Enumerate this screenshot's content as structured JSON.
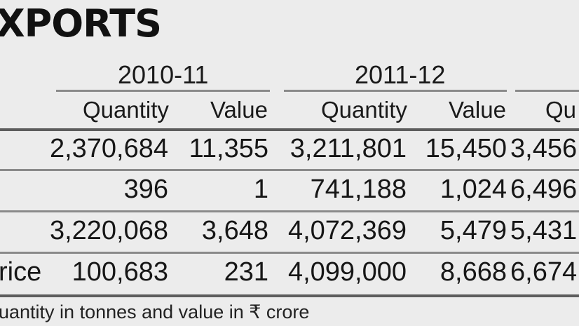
{
  "title": "XPORTS",
  "years": [
    "2010-11",
    "2011-12"
  ],
  "col_headers": {
    "y1_quantity": "Quantity",
    "y1_value": "Value",
    "y2_quantity": "Quantity",
    "y2_value": "Value",
    "y3_quantity_partial": "Qu"
  },
  "rows": [
    {
      "label": "",
      "y1_qty": "2,370,684",
      "y1_val": "11,355",
      "y2_qty": "3,211,801",
      "y2_val": "15,450",
      "y3_qty": "3,456"
    },
    {
      "label": "",
      "y1_qty": "396",
      "y1_val": "1",
      "y2_qty": "741,188",
      "y2_val": "1,024",
      "y3_qty": "6,496"
    },
    {
      "label": "",
      "y1_qty": "3,220,068",
      "y1_val": "3,648",
      "y2_qty": "4,072,369",
      "y2_val": "5,479",
      "y3_qty": "5,431"
    },
    {
      "label": "rice",
      "y1_qty": "100,683",
      "y1_val": "231",
      "y2_qty": "4,099,000",
      "y2_val": "8,668",
      "y3_qty": "6,674"
    }
  ],
  "footnote": "uantity in tonnes and value in ₹ crore"
}
